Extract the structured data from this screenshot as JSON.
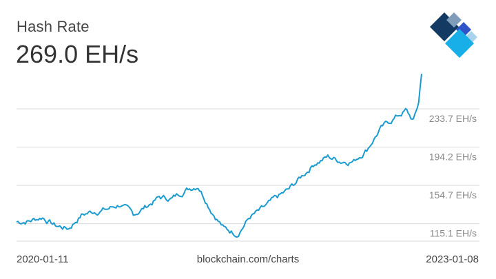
{
  "header": {
    "title": "Hash Rate",
    "current_value": "269.0 EH/s"
  },
  "footer": {
    "start_date": "2020-01-11",
    "source": "blockchain.com/charts",
    "end_date": "2023-01-08"
  },
  "colors": {
    "line": "#1a9bd0",
    "grid": "#d9d9d9",
    "logo_dark": "#123a63",
    "logo_grey": "#7f9db8",
    "logo_blue": "#2f54c8",
    "logo_cyan": "#18aee8",
    "logo_light": "#a9d2ec"
  },
  "logo": {
    "icon": "blockchain-logo-icon"
  },
  "chart_data": {
    "type": "line",
    "title": "Hash Rate",
    "y_unit": "EH/s",
    "x_range": [
      "2020-01-11",
      "2023-01-08"
    ],
    "ylim": [
      97,
      275
    ],
    "y_ticks": [
      {
        "value": 115.1,
        "label": "115.1 EH/s"
      },
      {
        "value": 154.7,
        "label": "154.7 EH/s"
      },
      {
        "value": 194.2,
        "label": "194.2 EH/s"
      },
      {
        "value": 233.7,
        "label": "233.7 EH/s"
      }
    ],
    "grid": true,
    "series": [
      {
        "x": [
          "2020-01-11",
          "2020-02-15",
          "2020-03-21",
          "2020-04-25",
          "2020-05-30",
          "2020-07-04",
          "2020-08-08",
          "2020-09-12",
          "2020-10-17",
          "2020-11-21",
          "2020-12-26",
          "2021-01-30",
          "2021-03-06",
          "2021-04-10",
          "2021-05-15",
          "2021-06-19",
          "2021-07-24",
          "2021-08-28",
          "2021-10-02",
          "2021-11-06",
          "2021-12-11",
          "2022-01-15",
          "2022-02-19",
          "2022-03-26",
          "2022-04-30",
          "2022-06-04",
          "2022-07-09",
          "2022-08-13",
          "2022-09-17",
          "2022-10-22",
          "2022-11-26",
          "2022-12-17",
          "2022-12-31",
          "2023-01-08"
        ],
        "values": [
          117,
          118,
          122,
          113,
          110,
          124,
          128,
          130,
          135,
          124,
          133,
          142,
          141,
          150,
          155,
          130,
          110,
          105,
          122,
          130,
          141,
          150,
          164,
          178,
          184,
          180,
          180,
          192,
          212,
          223,
          232,
          221,
          240,
          270
        ]
      }
    ]
  }
}
